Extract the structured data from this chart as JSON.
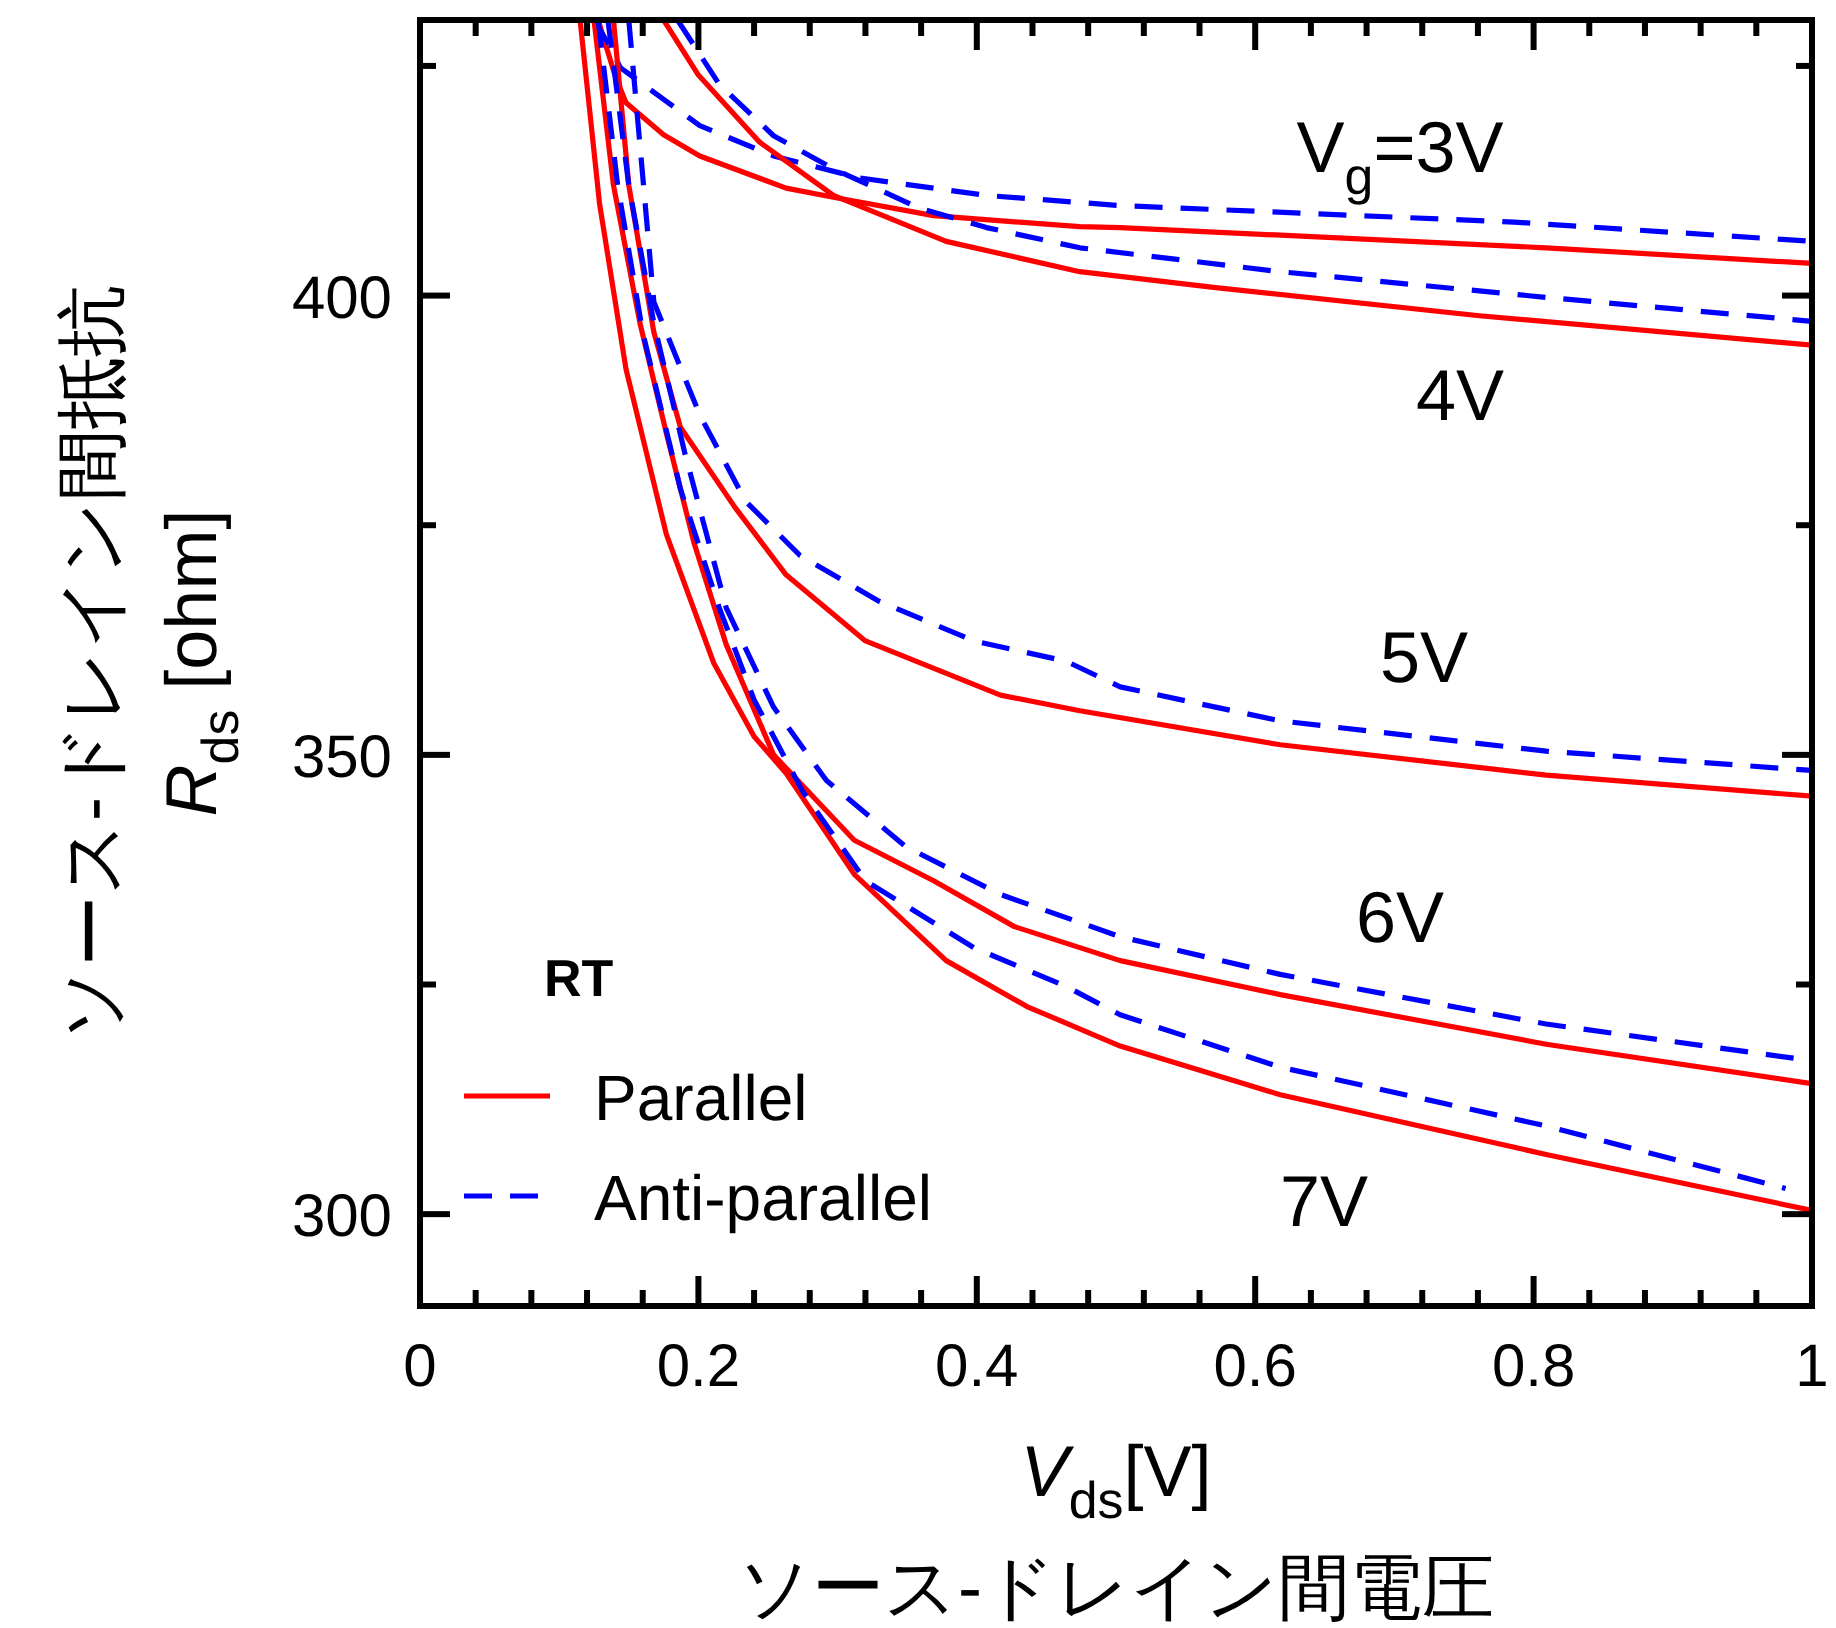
{
  "chart_data": {
    "type": "line",
    "xlabel": "*V*$_{ds}$[V]\nソース-ドレイン間電圧",
    "ylabel": "ソース-ドレイン間抵抗\n*R*$_{ds}$ [ohm]",
    "legend_title": "**RT**",
    "legend": "bottom left",
    "xlim": [
      0,
      1
    ],
    "ylim": [
      290,
      430
    ],
    "xticks": [
      0,
      {
        "value": 0.04,
        "label": null
      },
      {
        "value": 0.08,
        "label": null
      },
      {
        "value": 0.12,
        "label": null
      },
      {
        "value": 0.16,
        "label": null
      },
      0.2,
      {
        "value": 0.24,
        "label": null
      },
      {
        "value": 0.28,
        "label": null
      },
      {
        "value": 0.32,
        "label": null
      },
      {
        "value": 0.36,
        "label": null
      },
      0.4,
      {
        "value": 0.44,
        "label": null
      },
      {
        "value": 0.48,
        "label": null
      },
      {
        "value": 0.52,
        "label": null
      },
      {
        "value": 0.56,
        "label": null
      },
      0.6,
      {
        "value": 0.64,
        "label": null
      },
      {
        "value": 0.68,
        "label": null
      },
      {
        "value": 0.72,
        "label": null
      },
      {
        "value": 0.76,
        "label": null
      },
      0.8,
      {
        "value": 0.84,
        "label": null
      },
      {
        "value": 0.88,
        "label": null
      },
      {
        "value": 0.92,
        "label": null
      },
      {
        "value": 0.96,
        "label": null
      },
      1
    ],
    "yticks": [
      300,
      {
        "value": 325,
        "label": null
      },
      350,
      {
        "value": 375,
        "label": null
      },
      400,
      {
        "value": 425,
        "label": null
      }
    ],
    "annotations": [
      "V$_{g}$=3V",
      "4V",
      "5V",
      "6V",
      "7V"
    ],
    "series": [
      {
        "name": "Parallel",
        "color": "#ff0000",
        "line_style": "solid",
        "x": [
          0.128,
          0.14,
          0.148,
          0.175,
          0.201,
          0.263,
          0.297,
          0.369,
          0.474,
          0.503,
          0.809,
          1
        ],
        "values": [
          430,
          424,
          421,
          417.5,
          415.2,
          411.7,
          410.7,
          408.7,
          407.5,
          407.4,
          405.2,
          403.5
        ]
      },
      {
        "name": "Anti-parallel",
        "color": "#0000ff",
        "line_style": "dashed",
        "x": [
          0.125,
          0.135,
          0.144,
          0.201,
          0.254,
          0.316,
          0.407,
          0.503,
          0.786,
          1
        ],
        "values": [
          430,
          427.5,
          424.8,
          418.5,
          415.2,
          412.8,
          410.9,
          409.8,
          408,
          405.9
        ]
      },
      {
        "color": "#ff0000",
        "line_style": "solid",
        "x": [
          0.175,
          0.2,
          0.244,
          0.297,
          0.378,
          0.474,
          0.57,
          0.761,
          1
        ],
        "values": [
          430,
          424,
          416.7,
          410.9,
          405.9,
          402.6,
          400.9,
          397.8,
          394.6
        ]
      },
      {
        "color": "#0000ff",
        "line_style": "dashed",
        "x": [
          0.185,
          0.215,
          0.254,
          0.297,
          0.359,
          0.407,
          0.474,
          0.618,
          0.809,
          1
        ],
        "values": [
          430,
          423,
          417.4,
          413.8,
          409.5,
          407.4,
          405.2,
          402.6,
          399.8,
          397.2
        ]
      },
      {
        "color": "#ff0000",
        "line_style": "solid",
        "x": [
          0.139,
          0.15,
          0.168,
          0.187,
          0.226,
          0.263,
          0.32,
          0.417,
          0.474,
          0.618,
          0.809,
          1
        ],
        "values": [
          430,
          412,
          396,
          385.7,
          377,
          369.6,
          362.4,
          356.5,
          354.8,
          351.1,
          347.8,
          345.5
        ]
      },
      {
        "color": "#0000ff",
        "line_style": "dashed",
        "x": [
          0.15,
          0.16,
          0.168,
          0.201,
          0.234,
          0.273,
          0.33,
          0.398,
          0.464,
          0.503,
          0.618,
          0.809,
          1
        ],
        "values": [
          430,
          413,
          399.3,
          387,
          377.6,
          371.7,
          366.7,
          362.4,
          360.2,
          357.4,
          353.7,
          350.4,
          348.3
        ]
      },
      {
        "color": "#ff0000",
        "line_style": "solid",
        "x": [
          0.125,
          0.139,
          0.158,
          0.177,
          0.197,
          0.22,
          0.254,
          0.312,
          0.369,
          0.427,
          0.503,
          0.618,
          0.809,
          1
        ],
        "values": [
          430,
          412,
          397,
          385,
          373,
          362,
          350,
          340.7,
          336.3,
          331.3,
          327.6,
          323.9,
          318.5,
          314.2
        ]
      },
      {
        "color": "#0000ff",
        "line_style": "dashed",
        "x": [
          0.135,
          0.15,
          0.168,
          0.19,
          0.22,
          0.254,
          0.292,
          0.349,
          0.417,
          0.503,
          0.618,
          0.809,
          1
        ],
        "values": [
          430,
          412,
          397,
          383,
          366,
          355.2,
          347.2,
          340,
          334.8,
          330.2,
          326.1,
          320.7,
          316.7
        ]
      },
      {
        "color": "#ff0000",
        "line_style": "solid",
        "x": [
          0.115,
          0.129,
          0.148,
          0.177,
          0.211,
          0.24,
          0.263,
          0.312,
          0.378,
          0.436,
          0.503,
          0.618,
          0.809,
          1
        ],
        "values": [
          430,
          410,
          392,
          374,
          360,
          352,
          348,
          337,
          327.6,
          322.6,
          318.3,
          313,
          306.5,
          300.4
        ]
      },
      {
        "color": "#0000ff",
        "line_style": "dashed",
        "x": [
          0.128,
          0.142,
          0.16,
          0.187,
          0.215,
          0.24,
          0.275,
          0.32,
          0.398,
          0.464,
          0.503,
          0.618,
          0.809,
          0.981
        ],
        "values": [
          430,
          412,
          396,
          379,
          366,
          356,
          346,
          336.3,
          329,
          324.8,
          321.7,
          316,
          309.6,
          302.8
        ]
      }
    ]
  }
}
